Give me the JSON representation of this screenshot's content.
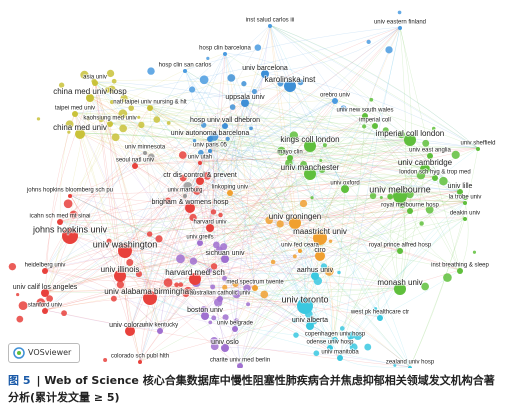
{
  "network": {
    "nodes": [
      {
        "label": "inst salud carlos iii",
        "color": "#4a9be0"
      },
      {
        "label": "univ eastern finland",
        "color": "#4a9be0"
      },
      {
        "label": "hosp clin barcelona",
        "color": "#4a9be0"
      },
      {
        "label": "univ barcelona",
        "color": "#3d8fd6"
      },
      {
        "label": "hosp clin san carlos",
        "color": "#4a9be0"
      },
      {
        "label": "karolinska inst",
        "color": "#3d8fd6"
      },
      {
        "label": "orebro univ",
        "color": "#4a9be0"
      },
      {
        "label": "uppsala univ",
        "color": "#3d8fd6"
      },
      {
        "label": "asia univ",
        "color": "#c9c23a"
      },
      {
        "label": "china med univ hosp",
        "color": "#c9c23a"
      },
      {
        "label": "natl taipei univ nursing & hlt",
        "color": "#c9c23a"
      },
      {
        "label": "taipei med univ",
        "color": "#c9c23a"
      },
      {
        "label": "kaohsiung med univ",
        "color": "#c9c23a"
      },
      {
        "label": "china med univ",
        "color": "#c9c23a"
      },
      {
        "label": "univ new south wales",
        "color": "#5fbf3c"
      },
      {
        "label": "imperial coll",
        "color": "#5fbf3c"
      },
      {
        "label": "hosp univ vall dhebron",
        "color": "#3d8fd6"
      },
      {
        "label": "imperial coll london",
        "color": "#5fbf3c"
      },
      {
        "label": "univ sheffield",
        "color": "#5fbf3c"
      },
      {
        "label": "univ autonoma barcelona",
        "color": "#3d8fd6"
      },
      {
        "label": "kings coll london",
        "color": "#5fbf3c"
      },
      {
        "label": "univ paris 05",
        "color": "#3d8fd6"
      },
      {
        "label": "univ minnesota",
        "color": "#999999"
      },
      {
        "label": "mayo clin",
        "color": "#5fbf3c"
      },
      {
        "label": "univ east anglia",
        "color": "#5fbf3c"
      },
      {
        "label": "seoul natl univ",
        "color": "#e8413c"
      },
      {
        "label": "univ utah",
        "color": "#e8413c"
      },
      {
        "label": "univ cambridge",
        "color": "#5fbf3c"
      },
      {
        "label": "ctr dis control & prevent",
        "color": "#e8413c"
      },
      {
        "label": "univ manchester",
        "color": "#5fbf3c"
      },
      {
        "label": "london sch hyg & trop med",
        "color": "#5fbf3c"
      },
      {
        "label": "univ oxford",
        "color": "#5fbf3c"
      },
      {
        "label": "johns hopkins bloomberg sch pu",
        "color": "#e8413c"
      },
      {
        "label": "univ marburg",
        "color": "#999999"
      },
      {
        "label": "linkoping univ",
        "color": "#f0a030"
      },
      {
        "label": "univ lille",
        "color": "#5fbf3c"
      },
      {
        "label": "univ melbourne",
        "color": "#5fbf3c"
      },
      {
        "label": "la trobe univ",
        "color": "#5fbf3c"
      },
      {
        "label": "brigham & womens hosp",
        "color": "#e8413c"
      },
      {
        "label": "royal melbourne hosp",
        "color": "#5fbf3c"
      },
      {
        "label": "icahn sch med mt sinai",
        "color": "#e8413c"
      },
      {
        "label": "deakin univ",
        "color": "#5fbf3c"
      },
      {
        "label": "univ groningen",
        "color": "#f0a030"
      },
      {
        "label": "harvard univ",
        "color": "#e8413c"
      },
      {
        "label": "johns hopkins univ",
        "color": "#e8413c"
      },
      {
        "label": "maastricht univ",
        "color": "#f0a030"
      },
      {
        "label": "univ washington",
        "color": "#e8413c"
      },
      {
        "label": "univ greifs",
        "color": "#a070d0"
      },
      {
        "label": "royal prince alfred hosp",
        "color": "#5fbf3c"
      },
      {
        "label": "univ fed ceara",
        "color": "#f0a030"
      },
      {
        "label": "heidelberg univ",
        "color": "#e8413c"
      },
      {
        "label": "univ illinois",
        "color": "#e8413c"
      },
      {
        "label": "sichuan univ",
        "color": "#a070d0"
      },
      {
        "label": "ciro",
        "color": "#f0a030"
      },
      {
        "label": "inst breathing & sleep",
        "color": "#5fbf3c"
      },
      {
        "label": "harvard med sch",
        "color": "#e8413c"
      },
      {
        "label": "aarhus univ",
        "color": "#3ac8e0"
      },
      {
        "label": "univ calif los angeles",
        "color": "#e8413c"
      },
      {
        "label": "monash univ",
        "color": "#5fbf3c"
      },
      {
        "label": "med spectrum twente",
        "color": "#f0a030"
      },
      {
        "label": "univ alabama birmingham",
        "color": "#e8413c"
      },
      {
        "label": "australian catholic univ",
        "color": "#a070d0"
      },
      {
        "label": "univ toronto",
        "color": "#3ac8e0"
      },
      {
        "label": "stanford univ",
        "color": "#e8413c"
      },
      {
        "label": "boston univ",
        "color": "#a070d0"
      },
      {
        "label": "west pk healthcare ctr",
        "color": "#3ac8e0"
      },
      {
        "label": "univ alberta",
        "color": "#3ac8e0"
      },
      {
        "label": "univ belgrade",
        "color": "#a070d0"
      },
      {
        "label": "univ colorado",
        "color": "#e8413c"
      },
      {
        "label": "univ kentucky",
        "color": "#a070d0"
      },
      {
        "label": "copenhagen univ hosp",
        "color": "#3ac8e0"
      },
      {
        "label": "univ oslo",
        "color": "#a070d0"
      },
      {
        "label": "odense univ hosp",
        "color": "#3ac8e0"
      },
      {
        "label": "colorado sch publ hlth",
        "color": "#e8413c"
      },
      {
        "label": "charite univ med berlin",
        "color": "#a070d0"
      },
      {
        "label": "univ manitoba",
        "color": "#3ac8e0"
      },
      {
        "label": "zealand univ hosp",
        "color": "#3ac8e0"
      }
    ],
    "logo": "VOSviewer"
  },
  "caption": {
    "figure": "图 5",
    "text": "| Web of Science 核心合集数据库中慢性阻塞性肺疾病合并焦虑抑郁相关领域发文机构合著分析(累计发文量 ≥ 5)"
  }
}
